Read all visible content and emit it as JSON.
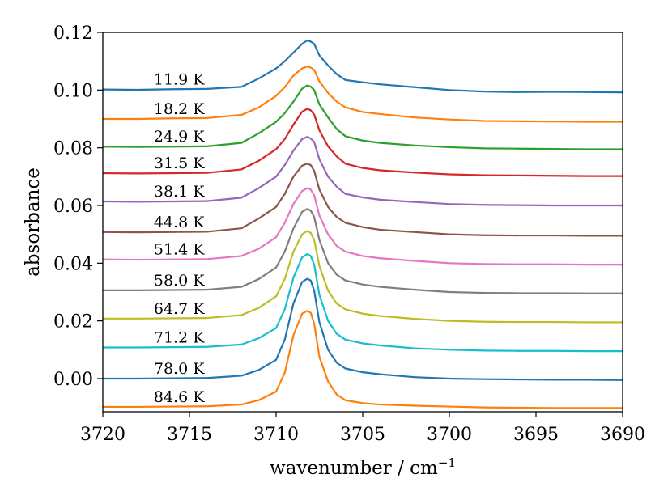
{
  "chart_data": {
    "type": "line",
    "title": "",
    "xlabel": "wavenumber / cm",
    "xlabel_sup": "−1",
    "ylabel": "absorbance",
    "xlim": [
      3720,
      3690
    ],
    "ylim": [
      -0.0115,
      0.12
    ],
    "x_ticks": [
      "3720",
      "3715",
      "3710",
      "3705",
      "3700",
      "3695",
      "3690"
    ],
    "y_ticks": [
      "0.00",
      "0.02",
      "0.04",
      "0.06",
      "0.08",
      "0.10",
      "0.12"
    ],
    "grid": false,
    "legend": "inline labels above each trace",
    "x": [
      3720,
      3718,
      3716,
      3714,
      3712,
      3711,
      3710,
      3709.5,
      3709,
      3708.5,
      3708.2,
      3708,
      3707.8,
      3707.5,
      3707,
      3706.5,
      3706,
      3705,
      3704,
      3702,
      3700,
      3698,
      3696,
      3694,
      3692,
      3690
    ],
    "series": [
      {
        "name": "11.9 K",
        "color": "#1f77b4",
        "values": [
          0.1002,
          0.1001,
          0.1003,
          0.1004,
          0.1011,
          0.104,
          0.1075,
          0.11,
          0.113,
          0.116,
          0.1172,
          0.1168,
          0.116,
          0.112,
          0.1085,
          0.1055,
          0.1035,
          0.1027,
          0.102,
          0.101,
          0.1,
          0.0995,
          0.0993,
          0.0994,
          0.0993,
          0.0992
        ]
      },
      {
        "name": "18.2 K",
        "color": "#ff7f0e",
        "values": [
          0.09,
          0.09,
          0.0902,
          0.0903,
          0.0914,
          0.094,
          0.098,
          0.101,
          0.105,
          0.1075,
          0.1082,
          0.1078,
          0.107,
          0.103,
          0.099,
          0.096,
          0.094,
          0.0924,
          0.0917,
          0.0905,
          0.0898,
          0.0893,
          0.0892,
          0.0891,
          0.089,
          0.089
        ]
      },
      {
        "name": "24.9 K",
        "color": "#2ca02c",
        "values": [
          0.0804,
          0.0803,
          0.0804,
          0.0805,
          0.0817,
          0.085,
          0.089,
          0.092,
          0.096,
          0.1005,
          0.1016,
          0.1012,
          0.1,
          0.095,
          0.0905,
          0.0865,
          0.084,
          0.0825,
          0.0817,
          0.0808,
          0.0802,
          0.0798,
          0.0797,
          0.0796,
          0.0795,
          0.0795
        ]
      },
      {
        "name": "31.5 K",
        "color": "#d62728",
        "values": [
          0.0712,
          0.0711,
          0.0712,
          0.0713,
          0.0725,
          0.0755,
          0.0795,
          0.083,
          0.088,
          0.0925,
          0.0935,
          0.093,
          0.0915,
          0.086,
          0.0805,
          0.077,
          0.0745,
          0.073,
          0.0722,
          0.0714,
          0.0708,
          0.0705,
          0.0704,
          0.0703,
          0.0702,
          0.0702
        ]
      },
      {
        "name": "38.1 K",
        "color": "#9467bd",
        "values": [
          0.0614,
          0.0613,
          0.0614,
          0.0615,
          0.0627,
          0.066,
          0.07,
          0.074,
          0.079,
          0.083,
          0.0838,
          0.0832,
          0.082,
          0.076,
          0.07,
          0.0665,
          0.064,
          0.0628,
          0.062,
          0.0612,
          0.0605,
          0.0602,
          0.0601,
          0.06,
          0.06,
          0.06
        ]
      },
      {
        "name": "44.8 K",
        "color": "#8c564b",
        "values": [
          0.0508,
          0.0507,
          0.0508,
          0.0509,
          0.0521,
          0.0555,
          0.0595,
          0.064,
          0.07,
          0.0738,
          0.0745,
          0.074,
          0.072,
          0.0655,
          0.0595,
          0.056,
          0.054,
          0.0525,
          0.0516,
          0.0508,
          0.05,
          0.0497,
          0.0496,
          0.0496,
          0.0495,
          0.0495
        ]
      },
      {
        "name": "51.4 K",
        "color": "#e377c2",
        "values": [
          0.0413,
          0.0412,
          0.0413,
          0.0414,
          0.0425,
          0.045,
          0.049,
          0.054,
          0.0605,
          0.065,
          0.066,
          0.0655,
          0.0635,
          0.0565,
          0.05,
          0.046,
          0.044,
          0.0425,
          0.0417,
          0.0408,
          0.04,
          0.0397,
          0.0396,
          0.0396,
          0.0395,
          0.0395
        ]
      },
      {
        "name": "58.0 K",
        "color": "#7f7f7f",
        "values": [
          0.0306,
          0.0306,
          0.0307,
          0.0308,
          0.0318,
          0.0345,
          0.0385,
          0.044,
          0.052,
          0.0578,
          0.0588,
          0.0582,
          0.056,
          0.048,
          0.04,
          0.036,
          0.034,
          0.0326,
          0.0318,
          0.0308,
          0.03,
          0.0297,
          0.0296,
          0.0296,
          0.0295,
          0.0295
        ]
      },
      {
        "name": "64.7 K",
        "color": "#bcbd22",
        "values": [
          0.0208,
          0.0208,
          0.0209,
          0.021,
          0.022,
          0.0245,
          0.0285,
          0.0345,
          0.044,
          0.05,
          0.0512,
          0.0505,
          0.048,
          0.039,
          0.0305,
          0.026,
          0.024,
          0.0225,
          0.0217,
          0.0207,
          0.02,
          0.0197,
          0.0196,
          0.0196,
          0.0195,
          0.0195
        ]
      },
      {
        "name": "71.2 K",
        "color": "#17becf",
        "values": [
          0.0108,
          0.0108,
          0.0109,
          0.011,
          0.0118,
          0.014,
          0.0175,
          0.024,
          0.035,
          0.042,
          0.0432,
          0.0425,
          0.0395,
          0.029,
          0.02,
          0.0155,
          0.0135,
          0.0122,
          0.0115,
          0.0105,
          0.01,
          0.0097,
          0.0096,
          0.0096,
          0.0095,
          0.0095
        ]
      },
      {
        "name": "78.0 K",
        "color": "#1f77b4",
        "values": [
          0.0,
          0.0,
          0.0001,
          0.0002,
          0.001,
          0.003,
          0.0065,
          0.0135,
          0.026,
          0.0335,
          0.0346,
          0.034,
          0.0305,
          0.0195,
          0.01,
          0.0055,
          0.0035,
          0.0022,
          0.0015,
          0.0005,
          0.0,
          -0.0002,
          -0.0003,
          -0.0004,
          -0.0004,
          -0.0005
        ]
      },
      {
        "name": "84.6 K",
        "color": "#ff7f0e",
        "values": [
          -0.0098,
          -0.0098,
          -0.0097,
          -0.0096,
          -0.009,
          -0.0075,
          -0.0045,
          0.002,
          0.015,
          0.0225,
          0.0235,
          0.0228,
          0.019,
          0.0075,
          -0.001,
          -0.0055,
          -0.0075,
          -0.0085,
          -0.009,
          -0.0094,
          -0.0097,
          -0.01,
          -0.0101,
          -0.0102,
          -0.0102,
          -0.0102
        ]
      }
    ]
  }
}
